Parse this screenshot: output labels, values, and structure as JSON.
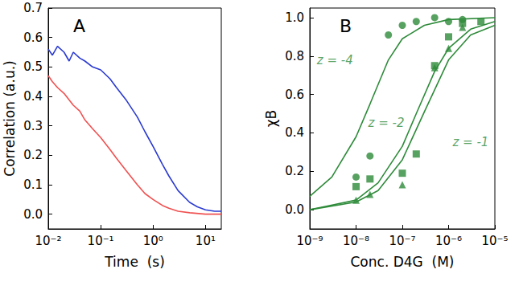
{
  "chart_data": [
    {
      "type": "line",
      "title": "A",
      "x_label": "Time  (s)",
      "y_label": "Correlation (a.u.)",
      "log": "x",
      "grid": false,
      "xlim": [
        0.01,
        20
      ],
      "xticks": [
        {
          "value": 0.01,
          "label": "10⁻²"
        },
        {
          "value": 0.1,
          "label": "10⁻¹"
        },
        {
          "value": 1,
          "label": "10⁰"
        },
        {
          "value": 10,
          "label": "10¹"
        }
      ],
      "ylim": [
        -0.05,
        0.7
      ],
      "yticks": [
        {
          "value": 0,
          "label": "0.0"
        },
        {
          "value": 0.1,
          "label": "0.1"
        },
        {
          "value": 0.2,
          "label": "0.2"
        },
        {
          "value": 0.3,
          "label": "0.3"
        },
        {
          "value": 0.4,
          "label": "0.4"
        },
        {
          "value": 0.5,
          "label": "0.5"
        },
        {
          "value": 0.6,
          "label": "0.6"
        },
        {
          "value": 0.7,
          "label": "0.7"
        }
      ],
      "series": [
        {
          "color": "#2a3ad0",
          "line_style": "solid",
          "x": [
            0.01,
            0.012,
            0.015,
            0.02,
            0.025,
            0.03,
            0.04,
            0.05,
            0.07,
            0.1,
            0.15,
            0.2,
            0.3,
            0.5,
            0.7,
            1,
            1.5,
            2,
            3,
            5,
            7,
            10,
            15,
            20
          ],
          "values": [
            0.56,
            0.54,
            0.57,
            0.55,
            0.52,
            0.55,
            0.53,
            0.52,
            0.5,
            0.49,
            0.46,
            0.43,
            0.39,
            0.33,
            0.28,
            0.23,
            0.17,
            0.13,
            0.08,
            0.04,
            0.025,
            0.015,
            0.01,
            0.01
          ]
        },
        {
          "color": "#f05050",
          "line_style": "solid",
          "x": [
            0.01,
            0.012,
            0.015,
            0.02,
            0.03,
            0.04,
            0.05,
            0.07,
            0.1,
            0.15,
            0.2,
            0.3,
            0.5,
            0.7,
            1,
            1.5,
            2,
            3,
            5,
            10,
            20
          ],
          "values": [
            0.47,
            0.45,
            0.43,
            0.41,
            0.37,
            0.35,
            0.32,
            0.29,
            0.26,
            0.22,
            0.19,
            0.15,
            0.1,
            0.07,
            0.05,
            0.03,
            0.02,
            0.01,
            0.005,
            0,
            0
          ]
        }
      ]
    },
    {
      "type": "scatter",
      "title": "B",
      "x_label": "Conc. D4G  (M)",
      "y_label": "χB",
      "log": "x",
      "grid": false,
      "xlim": [
        1e-09,
        1e-05
      ],
      "xticks": [
        {
          "value": 1e-09,
          "label": "10⁻⁹"
        },
        {
          "value": 1e-08,
          "label": "10⁻⁸"
        },
        {
          "value": 1e-07,
          "label": "10⁻⁷"
        },
        {
          "value": 1e-06,
          "label": "10⁻⁶"
        },
        {
          "value": 1e-05,
          "label": "10⁻⁵"
        }
      ],
      "ylim": [
        -0.1,
        1.05
      ],
      "yticks": [
        {
          "value": 0,
          "label": "0.0"
        },
        {
          "value": 0.2,
          "label": "0.2"
        },
        {
          "value": 0.4,
          "label": "0.4"
        },
        {
          "value": 0.6,
          "label": "0.6"
        },
        {
          "value": 0.8,
          "label": "0.8"
        },
        {
          "value": 1,
          "label": "1.0"
        }
      ],
      "series": [
        {
          "type": "scatter",
          "marker": "circle",
          "color": "#2e8b3a",
          "x": [
            1e-08,
            2e-08,
            5e-08,
            1e-07,
            2e-07,
            5e-07,
            1e-06,
            2e-06
          ],
          "values": [
            0.17,
            0.28,
            0.91,
            0.96,
            0.98,
            1.0,
            0.98,
            0.99
          ]
        },
        {
          "type": "scatter",
          "marker": "triangle",
          "color": "#2e8b3a",
          "x": [
            1e-08,
            2e-08,
            1e-07,
            5e-07,
            1e-06,
            2e-06
          ],
          "values": [
            0.05,
            0.08,
            0.13,
            0.74,
            0.84,
            0.95
          ]
        },
        {
          "type": "scatter",
          "marker": "square",
          "color": "#2e8b3a",
          "x": [
            1e-08,
            2e-08,
            1e-07,
            2e-07,
            5e-07,
            1e-06,
            2e-06,
            5e-06
          ],
          "values": [
            0.12,
            0.16,
            0.19,
            0.29,
            0.75,
            0.9,
            0.97,
            0.98
          ]
        },
        {
          "type": "line",
          "line_style": "solid",
          "color": "#2e8b3a",
          "x": [
            1e-09,
            3e-09,
            1e-08,
            2e-08,
            5e-08,
            1e-07,
            3e-07,
            1e-06,
            1e-05
          ],
          "values": [
            0.07,
            0.17,
            0.38,
            0.55,
            0.78,
            0.89,
            0.96,
            0.99,
            1.0
          ]
        },
        {
          "type": "line",
          "line_style": "solid",
          "color": "#2e8b3a",
          "x": [
            1e-09,
            1e-08,
            3e-08,
            1e-07,
            2e-07,
            5e-07,
            1e-06,
            3e-06,
            1e-05
          ],
          "values": [
            0.0,
            0.05,
            0.14,
            0.33,
            0.5,
            0.72,
            0.84,
            0.94,
            0.98
          ]
        },
        {
          "type": "line",
          "line_style": "solid",
          "color": "#2e8b3a",
          "x": [
            1e-09,
            1e-08,
            3e-08,
            1e-07,
            3e-07,
            1e-06,
            3e-06,
            1e-05
          ],
          "values": [
            0.0,
            0.04,
            0.1,
            0.26,
            0.51,
            0.78,
            0.91,
            0.96
          ]
        }
      ],
      "annotations": [
        {
          "text": "z = -4",
          "x": 3.5e-09,
          "y": 0.78,
          "color": "#2e8b3a"
        },
        {
          "text": "z = -2",
          "x": 4.5e-08,
          "y": 0.45,
          "color": "#2e8b3a"
        },
        {
          "text": "z = -1",
          "x": 3e-06,
          "y": 0.35,
          "color": "#2e8b3a"
        }
      ]
    }
  ]
}
